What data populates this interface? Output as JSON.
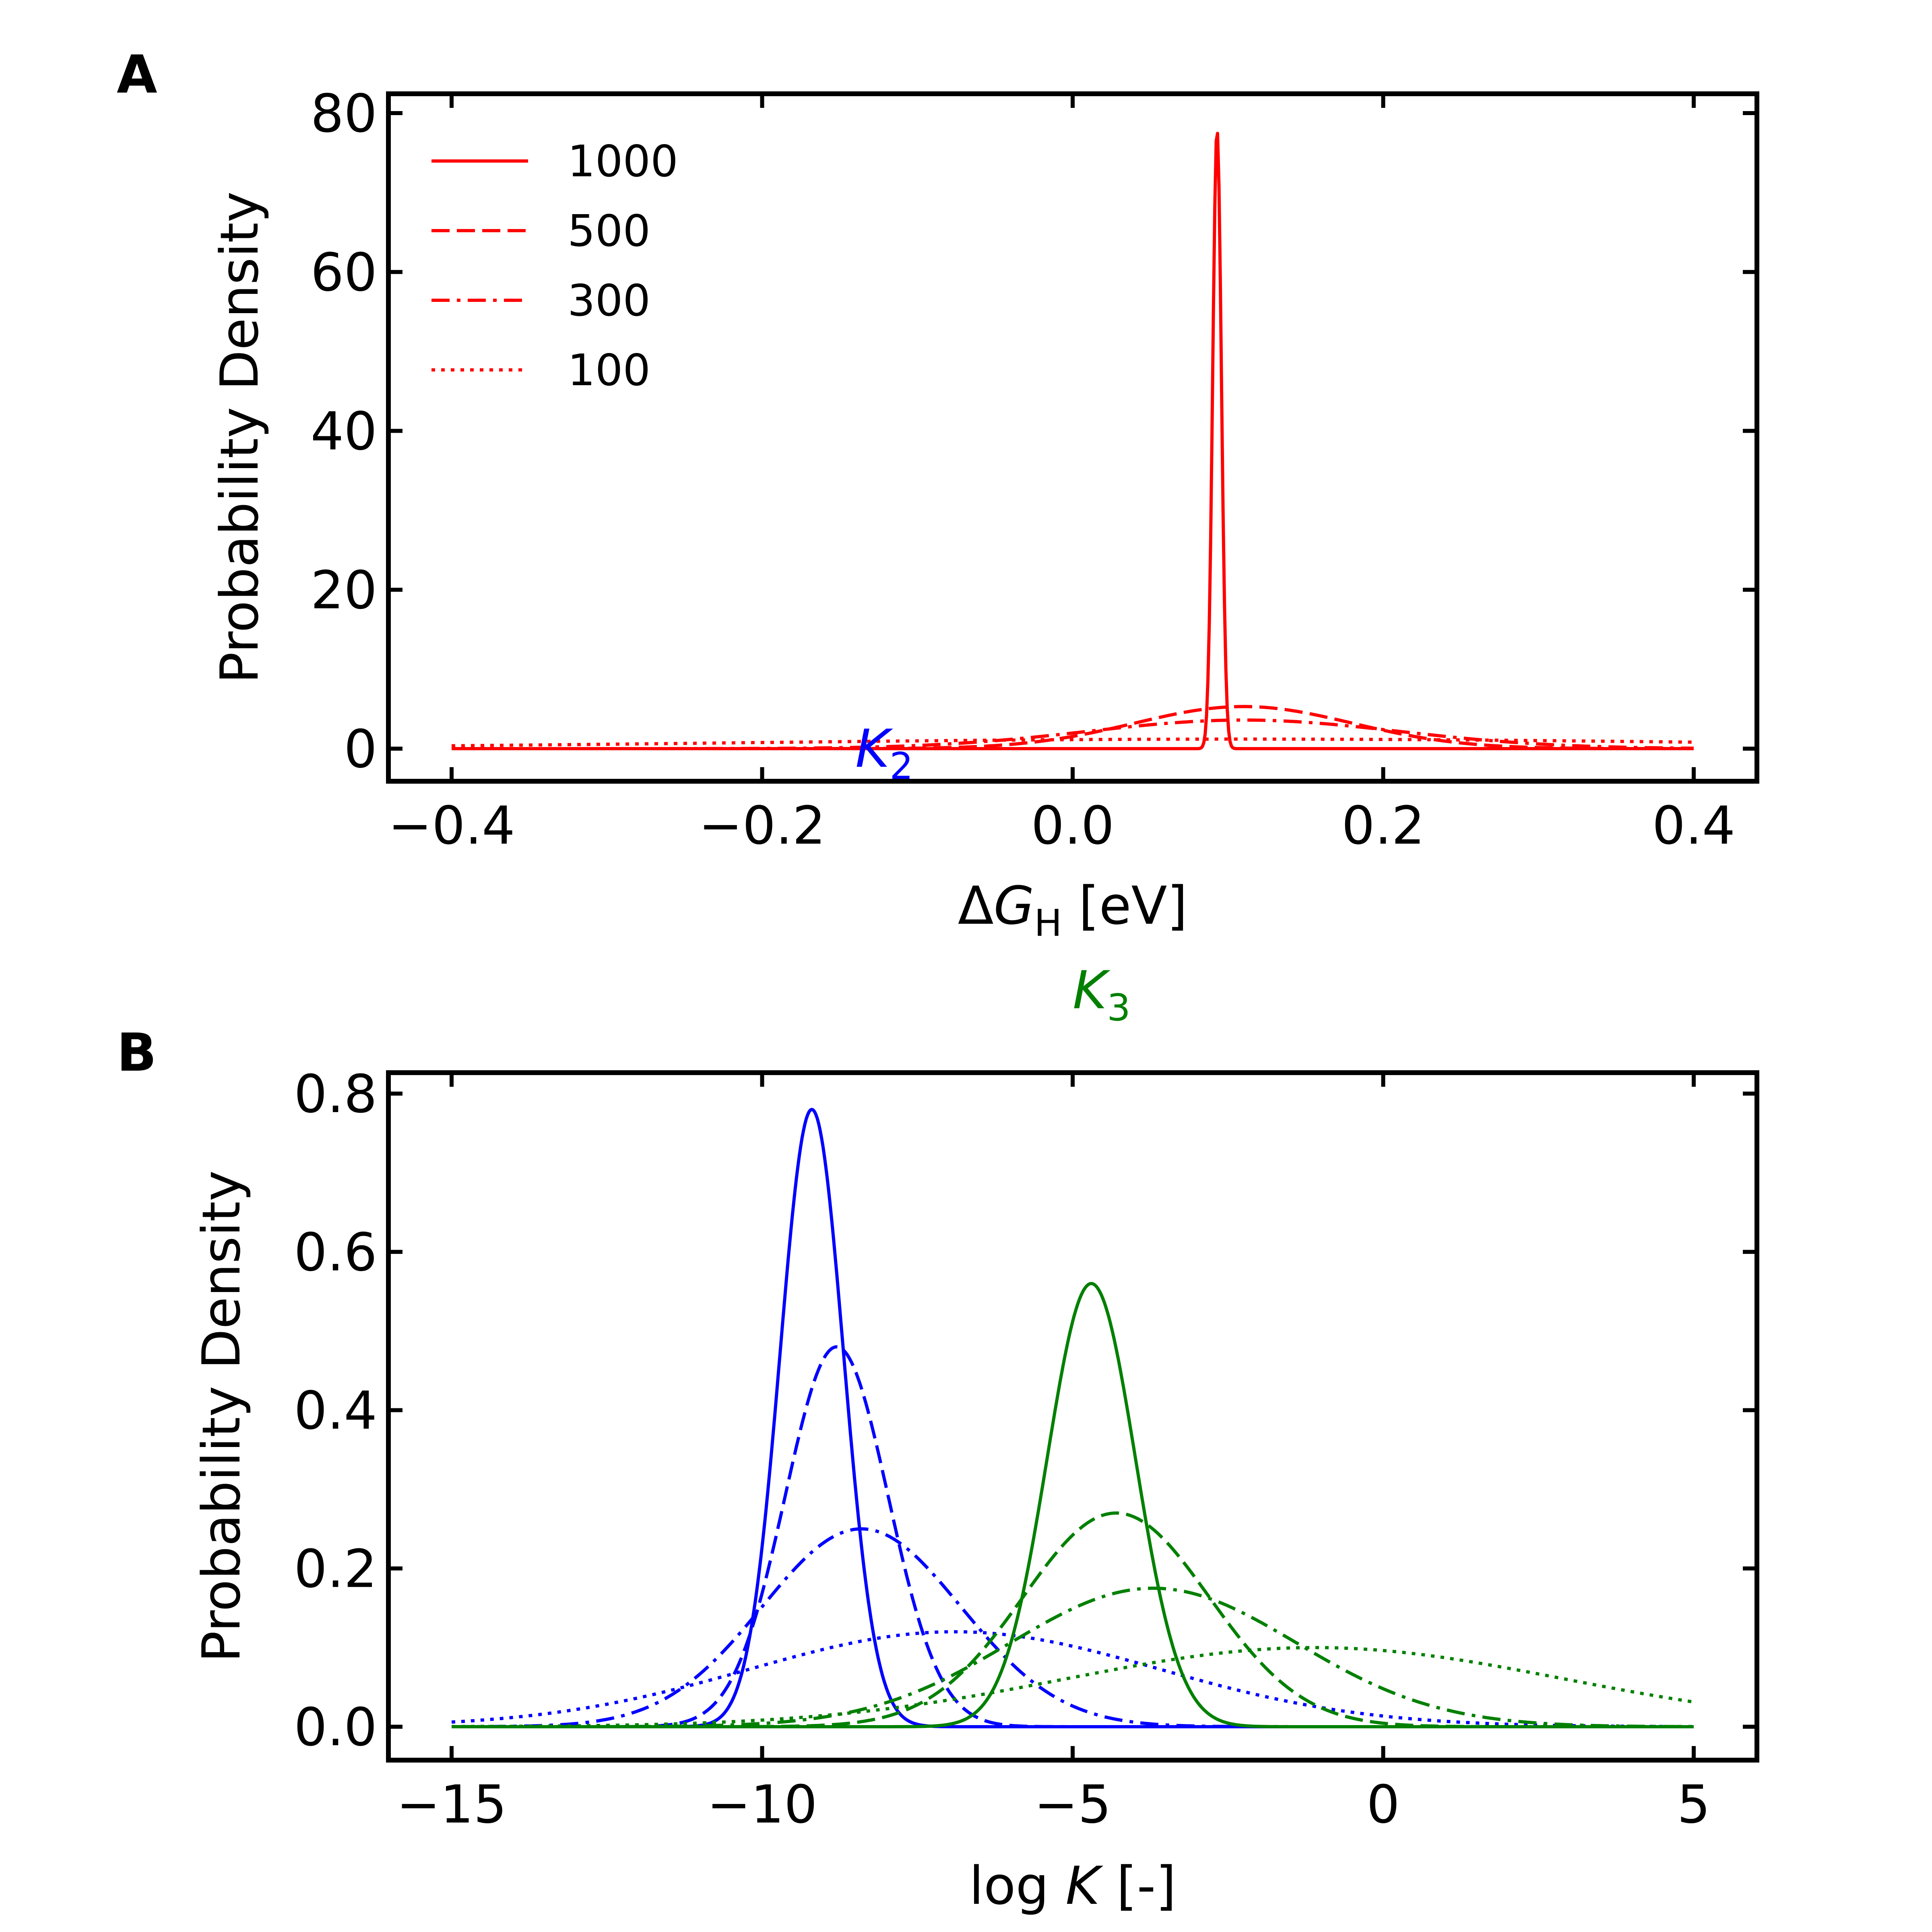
{
  "panel_a": {
    "label": "A",
    "xlabel_prefix": "Δ",
    "xlabel_var": "G",
    "xlabel_sub": "H",
    "xlabel_unit": " [eV]",
    "ylabel": "Probability Density",
    "legend": [
      "1000",
      "500",
      "300",
      "100"
    ]
  },
  "panel_b": {
    "label": "B",
    "xlabel_prefix": "log ",
    "xlabel_var": "K",
    "xlabel_unit": " [-]",
    "ylabel": "Probability Density"
  },
  "annotations": {
    "k2_var": "K",
    "k2_sub": "2",
    "k3_var": "K",
    "k3_sub": "3"
  },
  "colors": {
    "red": "#ff0000",
    "blue": "#0000ff",
    "green": "#008000",
    "axes": "#000000"
  },
  "chart_data": [
    {
      "type": "line",
      "xlim": [
        -0.4,
        0.4
      ],
      "ylim": [
        0,
        80
      ],
      "xticks": [
        "−0.4",
        "−0.2",
        "0.0",
        "0.2",
        "0.4"
      ],
      "xtick_values": [
        -0.4,
        -0.2,
        0.0,
        0.2,
        0.4
      ],
      "yticks": [
        "0",
        "20",
        "40",
        "60",
        "80"
      ],
      "ytick_values": [
        0,
        20,
        40,
        60,
        80
      ],
      "legend_placement": "top-left",
      "series": [
        {
          "name": "1000",
          "distribution": "gaussian",
          "center": 0.093,
          "peak": 78,
          "style": "solid",
          "color": "#ff0000"
        },
        {
          "name": "500",
          "distribution": "gaussian",
          "center": 0.11,
          "peak": 5.3,
          "style": "dashed",
          "color": "#ff0000"
        },
        {
          "name": "300",
          "distribution": "gaussian",
          "center": 0.11,
          "peak": 3.6,
          "style": "dashdot",
          "color": "#ff0000"
        },
        {
          "name": "100",
          "distribution": "gaussian",
          "center": 0.11,
          "peak": 1.2,
          "style": "dotted",
          "color": "#ff0000"
        }
      ]
    },
    {
      "type": "line",
      "xlim": [
        -15,
        5
      ],
      "ylim": [
        0,
        0.8
      ],
      "xticks": [
        "−15",
        "−10",
        "−5",
        "0",
        "5"
      ],
      "xtick_values": [
        -15,
        -10,
        -5,
        0,
        5
      ],
      "yticks": [
        "0.0",
        "0.2",
        "0.4",
        "0.6",
        "0.8"
      ],
      "ytick_values": [
        0,
        0.2,
        0.4,
        0.6,
        0.8
      ],
      "series": [
        {
          "group": "K2",
          "distribution": "gaussian",
          "center": -9.2,
          "peak": 0.78,
          "style": "solid",
          "color": "#0000ff"
        },
        {
          "group": "K2",
          "distribution": "gaussian",
          "center": -8.8,
          "peak": 0.48,
          "style": "dashed",
          "color": "#0000ff"
        },
        {
          "group": "K2",
          "distribution": "gaussian",
          "center": -8.4,
          "peak": 0.25,
          "style": "dashdot",
          "color": "#0000ff"
        },
        {
          "group": "K2",
          "distribution": "gaussian",
          "center": -6.9,
          "peak": 0.12,
          "style": "dotted",
          "color": "#0000ff"
        },
        {
          "group": "K3",
          "distribution": "gaussian",
          "center": -4.7,
          "peak": 0.56,
          "style": "solid",
          "color": "#008000"
        },
        {
          "group": "K3",
          "distribution": "gaussian",
          "center": -4.3,
          "peak": 0.27,
          "style": "dashed",
          "color": "#008000"
        },
        {
          "group": "K3",
          "distribution": "gaussian",
          "center": -3.7,
          "peak": 0.175,
          "style": "dashdot",
          "color": "#008000"
        },
        {
          "group": "K3",
          "distribution": "gaussian",
          "center": -1.1,
          "peak": 0.1,
          "style": "dotted",
          "color": "#008000"
        }
      ]
    }
  ]
}
